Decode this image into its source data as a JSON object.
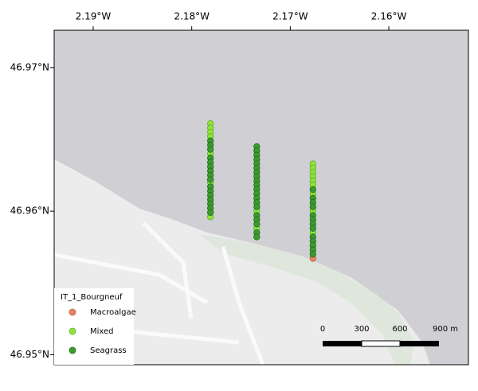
{
  "chart_data": {
    "type": "scatter",
    "xlim": [
      -2.19396,
      -2.15192
    ],
    "ylim": [
      46.9493,
      46.9726
    ],
    "xticks": [
      {
        "value": -2.19,
        "label": "2.19°W"
      },
      {
        "value": -2.18,
        "label": "2.18°W"
      },
      {
        "value": -2.17,
        "label": "2.17°W"
      },
      {
        "value": -2.16,
        "label": "2.16°W"
      }
    ],
    "yticks": [
      {
        "value": 46.95,
        "label": "46.95°N"
      },
      {
        "value": 46.96,
        "label": "46.96°N"
      },
      {
        "value": 46.97,
        "label": "46.97°N"
      }
    ],
    "legend_title": "IT_1_Bourgneuf",
    "series": [
      {
        "name": "Macroalgae",
        "color": "#e8845c",
        "x": [
          -2.1677
        ],
        "y": [
          46.9567
        ]
      },
      {
        "name": "Mixed",
        "color": "#8fe33a",
        "x": [
          -2.1781,
          -2.1781,
          -2.1781,
          -2.1781,
          -2.1781,
          -2.1781,
          -2.1781,
          -2.1734,
          -2.1734,
          -2.1677,
          -2.1677,
          -2.1677,
          -2.1677,
          -2.1677,
          -2.1677,
          -2.1677,
          -2.1677,
          -2.1677
        ],
        "y": [
          46.9661,
          46.9658,
          46.9655,
          46.9652,
          46.964,
          46.962,
          46.9596,
          46.96,
          46.9588,
          46.9633,
          46.963,
          46.9627,
          46.9624,
          46.9621,
          46.9618,
          46.9612,
          46.96,
          46.9585
        ]
      },
      {
        "name": "Seagrass",
        "color": "#3a9a2e",
        "x": [
          -2.1781,
          -2.1781,
          -2.1781,
          -2.1781,
          -2.1781,
          -2.1781,
          -2.1781,
          -2.1781,
          -2.1781,
          -2.1781,
          -2.1781,
          -2.1781,
          -2.1781,
          -2.1781,
          -2.1781,
          -2.1781,
          -2.1734,
          -2.1734,
          -2.1734,
          -2.1734,
          -2.1734,
          -2.1734,
          -2.1734,
          -2.1734,
          -2.1734,
          -2.1734,
          -2.1734,
          -2.1734,
          -2.1734,
          -2.1734,
          -2.1734,
          -2.1734,
          -2.1734,
          -2.1734,
          -2.1734,
          -2.1734,
          -2.1677,
          -2.1677,
          -2.1677,
          -2.1677,
          -2.1677,
          -2.1677,
          -2.1677,
          -2.1677,
          -2.1677,
          -2.1677,
          -2.1677,
          -2.1677,
          -2.1677
        ],
        "y": [
          46.9649,
          46.9646,
          46.9643,
          46.9637,
          46.9634,
          46.9631,
          46.9628,
          46.9625,
          46.9622,
          46.9617,
          46.9614,
          46.9611,
          46.9608,
          46.9605,
          46.9602,
          46.9599,
          46.9645,
          46.9642,
          46.9639,
          46.9636,
          46.9633,
          46.963,
          46.9627,
          46.9624,
          46.9621,
          46.9618,
          46.9615,
          46.9612,
          46.9609,
          46.9606,
          46.9603,
          46.9597,
          46.9594,
          46.9591,
          46.9585,
          46.9582,
          46.9615,
          46.9609,
          46.9606,
          46.9603,
          46.9597,
          46.9594,
          46.9591,
          46.9588,
          46.9582,
          46.9579,
          46.9576,
          46.9573,
          46.957
        ]
      }
    ],
    "scale_bar": {
      "labels": [
        "0",
        "300",
        "600",
        "900 m"
      ]
    }
  }
}
